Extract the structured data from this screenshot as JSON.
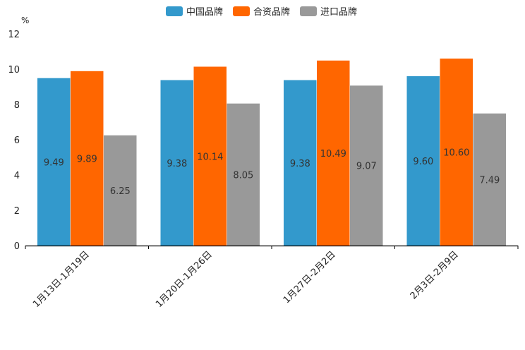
{
  "chart_data": {
    "type": "bar",
    "unit": "%",
    "categories": [
      "1月13日-1月19日",
      "1月20日-1月26日",
      "1月27日-2月2日",
      "2月3日-2月9日"
    ],
    "series": [
      {
        "name": "中国品牌",
        "color": "#3399cc",
        "values": [
          9.49,
          9.38,
          9.38,
          9.6
        ],
        "labels": [
          "9.49",
          "9.38",
          "9.38",
          "9.60"
        ]
      },
      {
        "name": "合资品牌",
        "color": "#ff6600",
        "values": [
          9.89,
          10.14,
          10.49,
          10.6
        ],
        "labels": [
          "9.89",
          "10.14",
          "10.49",
          "10.60"
        ]
      },
      {
        "name": "进口品牌",
        "color": "#999999",
        "values": [
          6.25,
          8.05,
          9.07,
          7.49
        ],
        "labels": [
          "6.25",
          "8.05",
          "9.07",
          "7.49"
        ]
      }
    ],
    "yticks": [
      "0",
      "2",
      "4",
      "6",
      "8",
      "10",
      "12"
    ],
    "ylim": [
      0,
      12
    ],
    "legend_position": "top-center"
  }
}
